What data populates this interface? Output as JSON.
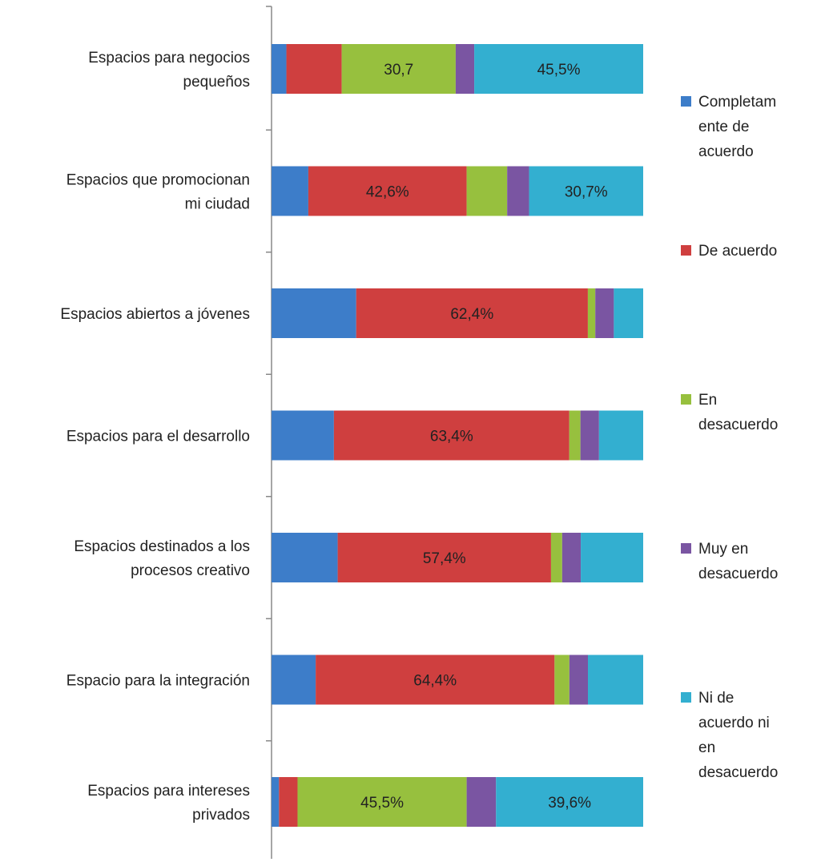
{
  "chart_data": {
    "type": "bar",
    "orientation": "horizontal",
    "stacked": "percent",
    "categories": [
      [
        "Espacios para negocios",
        "pequeños"
      ],
      [
        "Espacios que promocionan",
        "mi ciudad"
      ],
      [
        "Espacios abiertos a jóvenes"
      ],
      [
        "Espacios para el desarrollo"
      ],
      [
        "Espacios destinados a los",
        "procesos creativo"
      ],
      [
        "Espacio para la integración"
      ],
      [
        "Espacios para intereses",
        "privados"
      ]
    ],
    "series": [
      {
        "name": [
          "Completam",
          "ente de",
          "acuerdo"
        ],
        "color": "#3d7dc9",
        "values": [
          4.0,
          9.9,
          22.8,
          16.8,
          17.8,
          11.9,
          2.0
        ]
      },
      {
        "name": [
          "De acuerdo"
        ],
        "color": "#cf3f3f",
        "values": [
          14.9,
          42.6,
          62.4,
          63.4,
          57.4,
          64.4,
          5.0
        ]
      },
      {
        "name": [
          "En",
          "desacuerdo"
        ],
        "color": "#97c03e",
        "values": [
          30.7,
          10.9,
          2.0,
          3.0,
          3.0,
          4.0,
          45.5
        ]
      },
      {
        "name": [
          "Muy en",
          "desacuerdo"
        ],
        "color": "#7a55a2",
        "values": [
          5.0,
          5.9,
          5.0,
          5.0,
          5.0,
          5.0,
          7.9
        ]
      },
      {
        "name": [
          "Ni de",
          "acuerdo ni",
          "en",
          "desacuerdo"
        ],
        "color": "#33afd0",
        "values": [
          45.5,
          30.7,
          7.9,
          11.9,
          16.8,
          14.9,
          39.6
        ]
      }
    ],
    "data_labels": [
      [
        "",
        "",
        "30,7",
        "",
        "45,5%"
      ],
      [
        "",
        "42,6%",
        "",
        "",
        "30,7%"
      ],
      [
        "",
        "62,4%",
        "",
        "",
        ""
      ],
      [
        "",
        "63,4%",
        "",
        "",
        ""
      ],
      [
        "",
        "57,4%",
        "",
        "",
        ""
      ],
      [
        "",
        "64,4%",
        "",
        "",
        ""
      ],
      [
        "",
        "",
        "45,5%",
        "",
        "39,6%"
      ]
    ],
    "xlim": [
      0,
      100
    ],
    "grid": false,
    "legend_position": "right"
  }
}
